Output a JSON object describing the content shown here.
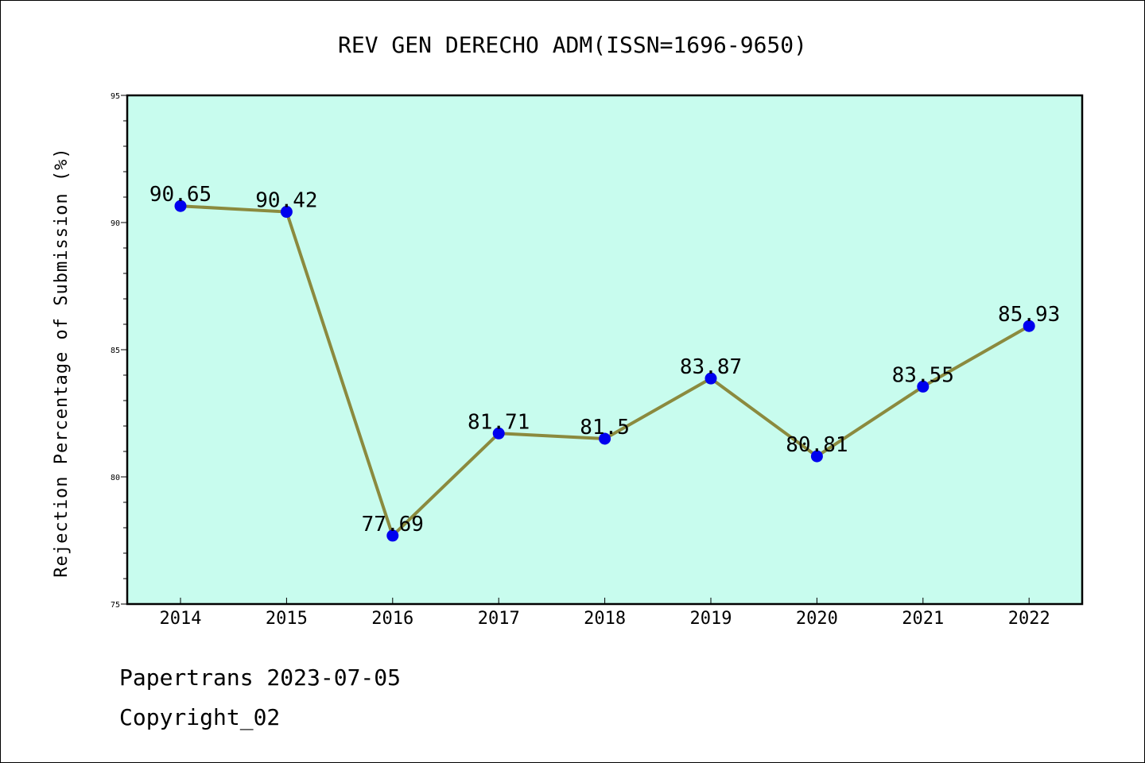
{
  "chart_data": {
    "type": "line",
    "title": "REV GEN DERECHO ADM(ISSN=1696-9650)",
    "xlabel": "",
    "ylabel": "Rejection Percentage of Submission (%)",
    "categories": [
      "2014",
      "2015",
      "2016",
      "2017",
      "2018",
      "2019",
      "2020",
      "2021",
      "2022"
    ],
    "values": [
      90.65,
      90.42,
      77.69,
      81.71,
      81.5,
      83.87,
      80.81,
      83.55,
      85.93
    ],
    "data_labels": [
      "90.65",
      "90.42",
      "77.69",
      "81.71",
      "81.5",
      "83.87",
      "80.81",
      "83.55",
      "85.93"
    ],
    "ylim": [
      75,
      95
    ],
    "yticks": [
      75,
      80,
      85,
      90,
      95
    ],
    "grid": false,
    "colors": {
      "plot_background": "#c8fcee",
      "line": "#8b8a3e",
      "marker": "#0000ee"
    }
  },
  "footer": {
    "line1": "Papertrans 2023-07-05",
    "line2": "Copyright_02"
  }
}
